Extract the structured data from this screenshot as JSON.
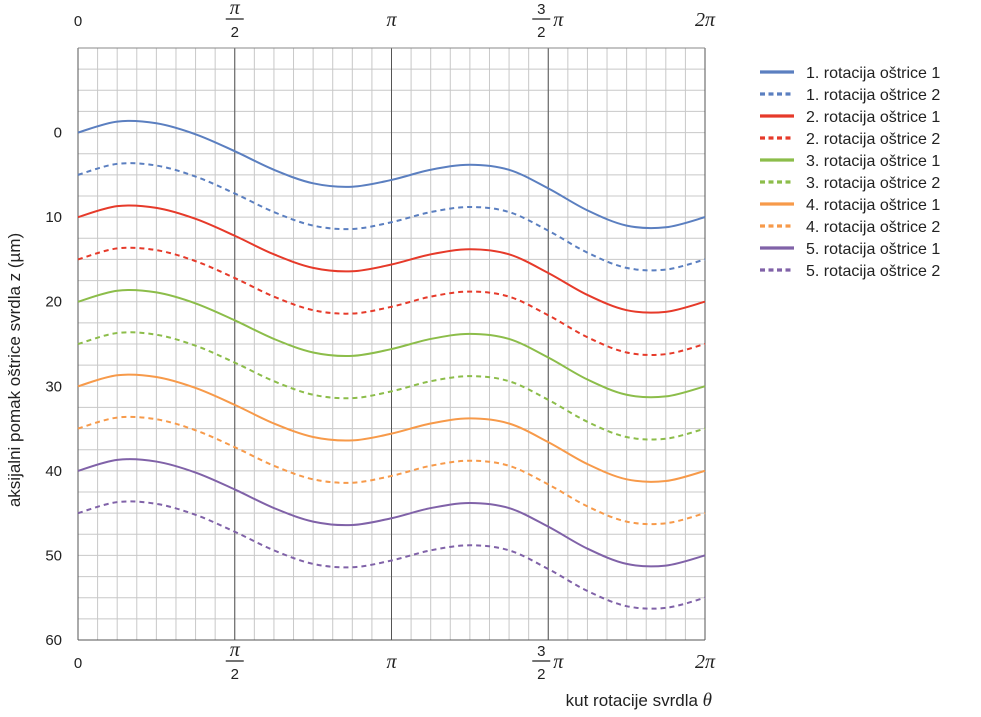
{
  "chart_data": {
    "type": "line",
    "title": "",
    "xlabel": "kut rotacije svrdla",
    "xlabel_symbol": "θ",
    "ylabel": "aksijalni pomak oštrice svrdla z (µm)",
    "xlim": [
      0,
      6.2832
    ],
    "ylim": [
      60,
      -10
    ],
    "y_inverted": true,
    "grid": true,
    "legend_position": "right",
    "x_ticks": [
      {
        "value": 0,
        "label": "0"
      },
      {
        "value": 1.5708,
        "num": "π",
        "den": "2"
      },
      {
        "value": 3.1416,
        "label": "π"
      },
      {
        "value": 4.7124,
        "num": "3",
        "den": "2",
        "suffix": "π"
      },
      {
        "value": 6.2832,
        "label": "2π"
      }
    ],
    "y_ticks": [
      0,
      10,
      20,
      30,
      40,
      50,
      60
    ],
    "x": [
      0,
      0.3927,
      0.7854,
      1.1781,
      1.5708,
      1.9635,
      2.3562,
      2.7489,
      3.1416,
      3.5343,
      3.927,
      4.3197,
      4.7124,
      5.1051,
      5.4978,
      5.8905,
      6.2832
    ],
    "series": [
      {
        "name": "1. rotacija oštrice 1",
        "color": "#5b7fc0",
        "dash": "solid",
        "values": [
          0,
          -1.3,
          -1.1,
          0.2,
          2.2,
          4.4,
          6.0,
          6.4,
          5.6,
          4.4,
          3.8,
          4.4,
          6.6,
          9.2,
          11.0,
          11.2,
          10.0
        ]
      },
      {
        "name": "1. rotacija oštrice 2",
        "color": "#5b7fc0",
        "dash": "dashed",
        "values": [
          5,
          3.7,
          3.9,
          5.2,
          7.2,
          9.4,
          11.0,
          11.4,
          10.6,
          9.4,
          8.8,
          9.4,
          11.6,
          14.2,
          16.0,
          16.2,
          15.0
        ]
      },
      {
        "name": "2. rotacija oštrice 1",
        "color": "#e63a2a",
        "dash": "solid",
        "values": [
          10,
          8.7,
          8.9,
          10.2,
          12.2,
          14.4,
          16.0,
          16.4,
          15.6,
          14.4,
          13.8,
          14.4,
          16.6,
          19.2,
          21.0,
          21.2,
          20.0
        ]
      },
      {
        "name": "2. rotacija oštrice 2",
        "color": "#e63a2a",
        "dash": "dashed",
        "values": [
          15,
          13.7,
          13.9,
          15.2,
          17.2,
          19.4,
          21.0,
          21.4,
          20.6,
          19.4,
          18.8,
          19.4,
          21.6,
          24.2,
          26.0,
          26.2,
          25.0
        ]
      },
      {
        "name": "3. rotacija oštrice 1",
        "color": "#8cbd4a",
        "dash": "solid",
        "values": [
          20,
          18.7,
          18.9,
          20.2,
          22.2,
          24.4,
          26.0,
          26.4,
          25.6,
          24.4,
          23.8,
          24.4,
          26.6,
          29.2,
          31.0,
          31.2,
          30.0
        ]
      },
      {
        "name": "3. rotacija oštrice 2",
        "color": "#8cbd4a",
        "dash": "dashed",
        "values": [
          25,
          23.7,
          23.9,
          25.2,
          27.2,
          29.4,
          31.0,
          31.4,
          30.6,
          29.4,
          28.8,
          29.4,
          31.6,
          34.2,
          36.0,
          36.2,
          35.0
        ]
      },
      {
        "name": "4. rotacija oštrice 1",
        "color": "#f79a4a",
        "dash": "solid",
        "values": [
          30,
          28.7,
          28.9,
          30.2,
          32.2,
          34.4,
          36.0,
          36.4,
          35.6,
          34.4,
          33.8,
          34.4,
          36.6,
          39.2,
          41.0,
          41.2,
          40.0
        ]
      },
      {
        "name": "4. rotacija oštrice 2",
        "color": "#f79a4a",
        "dash": "dashed",
        "values": [
          35,
          33.7,
          33.9,
          35.2,
          37.2,
          39.4,
          41.0,
          41.4,
          40.6,
          39.4,
          38.8,
          39.4,
          41.6,
          44.2,
          46.0,
          46.2,
          45.0
        ]
      },
      {
        "name": "5. rotacija oštrice 1",
        "color": "#8062a8",
        "dash": "solid",
        "values": [
          40,
          38.7,
          38.9,
          40.2,
          42.2,
          44.4,
          46.0,
          46.4,
          45.6,
          44.4,
          43.8,
          44.4,
          46.6,
          49.2,
          51.0,
          51.2,
          50.0
        ]
      },
      {
        "name": "5. rotacija oštrice 2",
        "color": "#8062a8",
        "dash": "dashed",
        "values": [
          45,
          43.7,
          43.9,
          45.2,
          47.2,
          49.4,
          51.0,
          51.4,
          50.6,
          49.4,
          48.8,
          49.4,
          51.6,
          54.2,
          56.0,
          56.2,
          55.0
        ]
      }
    ]
  }
}
